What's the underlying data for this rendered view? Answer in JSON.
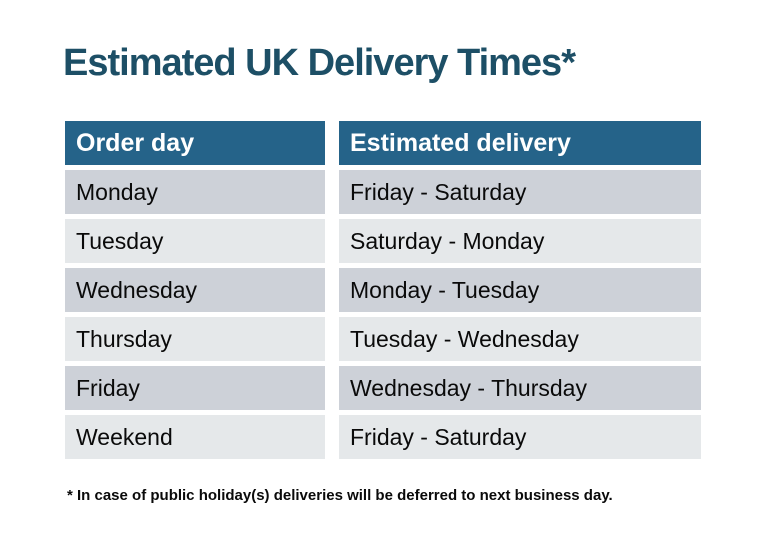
{
  "title": "Estimated UK Delivery Times*",
  "colors": {
    "header_bg": "#256389",
    "header_text": "#ffffff",
    "row_dark": "#cdd1d8",
    "row_light": "#e5e8ea",
    "title_text": "#1d4f66",
    "body_text": "#0a0a0a"
  },
  "table": {
    "headers": [
      "Order day",
      "Estimated delivery"
    ],
    "rows": [
      {
        "order_day": "Monday",
        "delivery": "Friday - Saturday"
      },
      {
        "order_day": "Tuesday",
        "delivery": "Saturday - Monday"
      },
      {
        "order_day": "Wednesday",
        "delivery": "Monday - Tuesday"
      },
      {
        "order_day": "Thursday",
        "delivery": "Tuesday - Wednesday"
      },
      {
        "order_day": "Friday",
        "delivery": "Wednesday - Thursday"
      },
      {
        "order_day": "Weekend",
        "delivery": "Friday - Saturday"
      }
    ]
  },
  "footnote": "* In case of public holiday(s) deliveries will be deferred to next business day."
}
